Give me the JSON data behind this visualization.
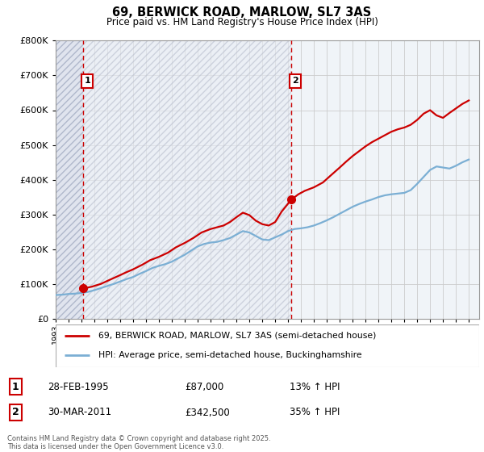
{
  "title": "69, BERWICK ROAD, MARLOW, SL7 3AS",
  "subtitle": "Price paid vs. HM Land Registry's House Price Index (HPI)",
  "ylim": [
    0,
    800000
  ],
  "ytick_values": [
    0,
    100000,
    200000,
    300000,
    400000,
    500000,
    600000,
    700000,
    800000
  ],
  "ytick_labels": [
    "£0",
    "£100K",
    "£200K",
    "£300K",
    "£400K",
    "£500K",
    "£600K",
    "£700K",
    "£800K"
  ],
  "legend_line1": "69, BERWICK ROAD, MARLOW, SL7 3AS (semi-detached house)",
  "legend_line2": "HPI: Average price, semi-detached house, Buckinghamshire",
  "sale1_label": "1",
  "sale1_date": "28-FEB-1995",
  "sale1_price": "£87,000",
  "sale1_hpi": "13% ↑ HPI",
  "sale2_label": "2",
  "sale2_date": "30-MAR-2011",
  "sale2_price": "£342,500",
  "sale2_hpi": "35% ↑ HPI",
  "copyright": "Contains HM Land Registry data © Crown copyright and database right 2025.\nThis data is licensed under the Open Government Licence v3.0.",
  "red_color": "#cc0000",
  "blue_color": "#7bafd4",
  "grid_color": "#cccccc",
  "bg_color": "#f0f4f8",
  "sale1_x": 1995.15,
  "sale2_x": 2011.25,
  "xlim_left": 1993.0,
  "xlim_right": 2025.8,
  "hpi_years": [
    1993.0,
    1993.5,
    1994.0,
    1994.5,
    1995.0,
    1995.5,
    1996.0,
    1996.5,
    1997.0,
    1997.5,
    1998.0,
    1998.5,
    1999.0,
    1999.5,
    2000.0,
    2000.5,
    2001.0,
    2001.5,
    2002.0,
    2002.5,
    2003.0,
    2003.5,
    2004.0,
    2004.5,
    2005.0,
    2005.5,
    2006.0,
    2006.5,
    2007.0,
    2007.5,
    2008.0,
    2008.5,
    2009.0,
    2009.5,
    2010.0,
    2010.5,
    2011.0,
    2011.5,
    2012.0,
    2012.5,
    2013.0,
    2013.5,
    2014.0,
    2014.5,
    2015.0,
    2015.5,
    2016.0,
    2016.5,
    2017.0,
    2017.5,
    2018.0,
    2018.5,
    2019.0,
    2019.5,
    2020.0,
    2020.5,
    2021.0,
    2021.5,
    2022.0,
    2022.5,
    2023.0,
    2023.5,
    2024.0,
    2024.5,
    2025.0
  ],
  "hpi_values": [
    68000,
    69000,
    71000,
    72000,
    74000,
    77000,
    82000,
    88000,
    94000,
    100000,
    107000,
    114000,
    120000,
    129000,
    137000,
    146000,
    152000,
    157000,
    164000,
    174000,
    184000,
    196000,
    208000,
    215000,
    219000,
    221000,
    226000,
    232000,
    242000,
    252000,
    248000,
    238000,
    228000,
    226000,
    234000,
    242000,
    252000,
    258000,
    260000,
    263000,
    268000,
    275000,
    283000,
    292000,
    302000,
    312000,
    322000,
    330000,
    337000,
    343000,
    350000,
    355000,
    358000,
    360000,
    362000,
    370000,
    388000,
    408000,
    428000,
    438000,
    435000,
    432000,
    440000,
    450000,
    458000
  ],
  "price_years": [
    1995.15,
    1995.8,
    1996.5,
    1997.2,
    1997.8,
    1998.5,
    1999.0,
    1999.7,
    2000.3,
    2001.0,
    2001.7,
    2002.3,
    2003.0,
    2003.7,
    2004.3,
    2005.0,
    2005.5,
    2006.0,
    2006.5,
    2007.0,
    2007.5,
    2008.0,
    2008.5,
    2009.0,
    2009.5,
    2010.0,
    2010.5,
    2011.25,
    2011.8,
    2012.3,
    2013.0,
    2013.7,
    2014.3,
    2015.0,
    2015.5,
    2016.0,
    2016.5,
    2017.0,
    2017.5,
    2018.0,
    2018.5,
    2019.0,
    2019.5,
    2020.0,
    2020.5,
    2021.0,
    2021.5,
    2022.0,
    2022.5,
    2023.0,
    2023.5,
    2024.0,
    2024.5,
    2025.0
  ],
  "price_values": [
    87000,
    92000,
    100000,
    112000,
    122000,
    134000,
    142000,
    155000,
    168000,
    178000,
    190000,
    205000,
    218000,
    233000,
    248000,
    258000,
    263000,
    268000,
    278000,
    292000,
    305000,
    298000,
    282000,
    272000,
    268000,
    278000,
    308000,
    342500,
    358000,
    368000,
    378000,
    392000,
    412000,
    435000,
    452000,
    468000,
    482000,
    496000,
    508000,
    518000,
    528000,
    538000,
    545000,
    550000,
    558000,
    572000,
    590000,
    600000,
    585000,
    578000,
    592000,
    605000,
    618000,
    628000
  ]
}
